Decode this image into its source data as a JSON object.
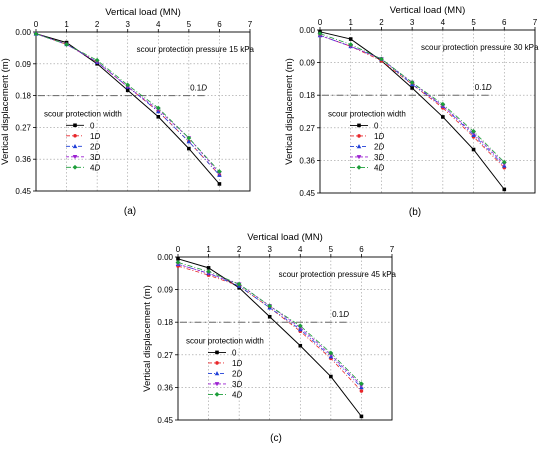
{
  "colors": {
    "series": [
      "#000000",
      "#e8262a",
      "#1f3fd8",
      "#9b1fd1",
      "#1d9e3a"
    ],
    "axis": "#000000",
    "grid": "#9a9a9a",
    "reference_line": "#666666"
  },
  "chart_data": [
    {
      "type": "line",
      "panel_label": "(a)",
      "xlabel": "Vertical load (MN)",
      "ylabel": "Vertical displacement (m)",
      "xlim": [
        0,
        7
      ],
      "ylim": [
        0,
        0.45
      ],
      "y_inverted": true,
      "x_axis_position": "top",
      "x_ticks": [
        "0",
        "1",
        "2",
        "3",
        "4",
        "5",
        "6",
        "7"
      ],
      "y_ticks": [
        "0.00",
        "0.09",
        "0.18",
        "0.27",
        "0.36",
        "0.45"
      ],
      "grid": true,
      "annotation": "scour protection pressure 15 kPa",
      "reference_line": {
        "y": 0.18,
        "label": "0.1D"
      },
      "legend": {
        "title": "scour protection width",
        "placement": "middle-left"
      },
      "x": [
        0,
        1,
        2,
        3,
        4,
        5,
        6
      ],
      "series": [
        {
          "name": "0",
          "values": [
            0.005,
            0.03,
            0.09,
            0.165,
            0.24,
            0.33,
            0.43
          ]
        },
        {
          "name": "1D",
          "values": [
            0.005,
            0.035,
            0.085,
            0.155,
            0.225,
            0.31,
            0.405
          ]
        },
        {
          "name": "2D",
          "values": [
            0.005,
            0.035,
            0.085,
            0.155,
            0.225,
            0.31,
            0.405
          ]
        },
        {
          "name": "3D",
          "values": [
            0.005,
            0.035,
            0.085,
            0.155,
            0.22,
            0.3,
            0.4
          ]
        },
        {
          "name": "4D",
          "values": [
            0.005,
            0.035,
            0.08,
            0.15,
            0.215,
            0.3,
            0.395
          ]
        }
      ]
    },
    {
      "type": "line",
      "panel_label": "(b)",
      "xlabel": "Vertical load (MN)",
      "ylabel": "Vertical displacement (m)",
      "xlim": [
        0,
        7
      ],
      "ylim": [
        0,
        0.45
      ],
      "y_inverted": true,
      "x_axis_position": "top",
      "x_ticks": [
        "0",
        "1",
        "2",
        "3",
        "4",
        "5",
        "6",
        "7"
      ],
      "y_ticks": [
        "0.00",
        "0.09",
        "0.18",
        "0.27",
        "0.36",
        "0.45"
      ],
      "grid": true,
      "annotation": "scour protection pressure 30 kPa",
      "reference_line": {
        "y": 0.18,
        "label": "0.1D"
      },
      "legend": {
        "title": "scour protection width",
        "placement": "middle-left"
      },
      "x": [
        0,
        1,
        2,
        3,
        4,
        5,
        6
      ],
      "series": [
        {
          "name": "0",
          "values": [
            0.005,
            0.025,
            0.085,
            0.16,
            0.24,
            0.33,
            0.44
          ]
        },
        {
          "name": "1D",
          "values": [
            0.015,
            0.045,
            0.085,
            0.15,
            0.215,
            0.295,
            0.38
          ]
        },
        {
          "name": "2D",
          "values": [
            0.015,
            0.045,
            0.08,
            0.15,
            0.21,
            0.29,
            0.375
          ]
        },
        {
          "name": "3D",
          "values": [
            0.015,
            0.045,
            0.08,
            0.145,
            0.21,
            0.285,
            0.37
          ]
        },
        {
          "name": "4D",
          "values": [
            0.01,
            0.04,
            0.08,
            0.145,
            0.205,
            0.28,
            0.365
          ]
        }
      ]
    },
    {
      "type": "line",
      "panel_label": "(c)",
      "xlabel": "Vertical load (MN)",
      "ylabel": "Vertical displacement (m)",
      "xlim": [
        0,
        7
      ],
      "ylim": [
        0,
        0.45
      ],
      "y_inverted": true,
      "x_axis_position": "top",
      "x_ticks": [
        "0",
        "1",
        "2",
        "3",
        "4",
        "5",
        "6",
        "7"
      ],
      "y_ticks": [
        "0.00",
        "0.09",
        "0.18",
        "0.27",
        "0.36",
        "0.45"
      ],
      "grid": true,
      "annotation": "scour protection pressure 45 kPa",
      "reference_line": {
        "y": 0.18,
        "label": "0.1D"
      },
      "legend": {
        "title": "scour protection width",
        "placement": "middle-left"
      },
      "x": [
        0,
        1,
        2,
        3,
        4,
        5,
        6
      ],
      "series": [
        {
          "name": "0",
          "values": [
            0.005,
            0.03,
            0.085,
            0.165,
            0.245,
            0.33,
            0.44
          ]
        },
        {
          "name": "1D",
          "values": [
            0.025,
            0.05,
            0.08,
            0.14,
            0.205,
            0.28,
            0.37
          ]
        },
        {
          "name": "2D",
          "values": [
            0.02,
            0.045,
            0.08,
            0.14,
            0.2,
            0.275,
            0.36
          ]
        },
        {
          "name": "3D",
          "values": [
            0.02,
            0.045,
            0.075,
            0.135,
            0.195,
            0.27,
            0.355
          ]
        },
        {
          "name": "4D",
          "values": [
            0.015,
            0.04,
            0.075,
            0.135,
            0.19,
            0.265,
            0.35
          ]
        }
      ]
    }
  ]
}
